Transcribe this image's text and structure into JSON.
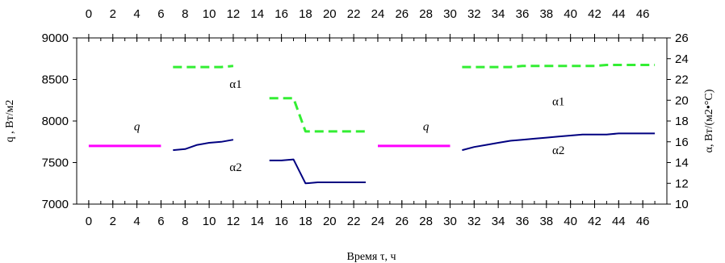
{
  "chart_data": {
    "type": "line",
    "xlabel": "Время τ, ч",
    "ylabel_left": "q , Вт/м2",
    "ylabel_right": "α, Вт/(м2•°С)",
    "x_range": [
      -1,
      48
    ],
    "x_ticks": [
      0,
      2,
      4,
      6,
      8,
      10,
      12,
      14,
      16,
      18,
      20,
      22,
      24,
      26,
      28,
      30,
      32,
      34,
      36,
      38,
      40,
      42,
      44,
      46
    ],
    "y_left_range": [
      7000,
      9000
    ],
    "y_left_ticks": [
      7000,
      7500,
      8000,
      8500,
      9000
    ],
    "y_right_range": [
      10,
      26
    ],
    "y_right_ticks": [
      10,
      12,
      14,
      16,
      18,
      20,
      22,
      24,
      26
    ],
    "grid": false,
    "legend": "none",
    "colors": {
      "q": "#ff00ff",
      "alpha1": "#33ee33",
      "alpha2": "#000080"
    },
    "series": [
      {
        "name": "q",
        "axis": "left",
        "style": "solid",
        "segments": [
          [
            [
              0,
              7700
            ],
            [
              6,
              7700
            ]
          ],
          [
            [
              24,
              7700
            ],
            [
              30,
              7700
            ]
          ]
        ]
      },
      {
        "name": "α1",
        "axis": "right",
        "style": "dashed",
        "segments": [
          [
            [
              7,
              23.2
            ],
            [
              8,
              23.2
            ],
            [
              9,
              23.2
            ],
            [
              10,
              23.2
            ],
            [
              11,
              23.2
            ],
            [
              12,
              23.3
            ]
          ],
          [
            [
              15,
              20.2
            ],
            [
              16,
              20.2
            ],
            [
              17,
              20.2
            ],
            [
              18,
              17.0
            ],
            [
              19,
              17.0
            ],
            [
              20,
              17.0
            ],
            [
              21,
              17.0
            ],
            [
              22,
              17.0
            ],
            [
              23,
              17.0
            ]
          ],
          [
            [
              31,
              23.2
            ],
            [
              32,
              23.2
            ],
            [
              33,
              23.2
            ],
            [
              34,
              23.2
            ],
            [
              35,
              23.2
            ],
            [
              36,
              23.3
            ],
            [
              37,
              23.3
            ],
            [
              38,
              23.3
            ],
            [
              39,
              23.3
            ],
            [
              40,
              23.3
            ],
            [
              41,
              23.3
            ],
            [
              42,
              23.3
            ],
            [
              43,
              23.4
            ],
            [
              44,
              23.4
            ],
            [
              45,
              23.4
            ],
            [
              46,
              23.4
            ],
            [
              47,
              23.4
            ]
          ]
        ]
      },
      {
        "name": "α2",
        "axis": "right",
        "style": "solid",
        "segments": [
          [
            [
              7,
              15.2
            ],
            [
              8,
              15.3
            ],
            [
              9,
              15.7
            ],
            [
              10,
              15.9
            ],
            [
              11,
              16.0
            ],
            [
              12,
              16.2
            ]
          ],
          [
            [
              15,
              14.2
            ],
            [
              16,
              14.2
            ],
            [
              17,
              14.3
            ],
            [
              18,
              12.0
            ],
            [
              19,
              12.1
            ],
            [
              20,
              12.1
            ],
            [
              21,
              12.1
            ],
            [
              22,
              12.1
            ],
            [
              23,
              12.1
            ]
          ],
          [
            [
              31,
              15.2
            ],
            [
              32,
              15.5
            ],
            [
              33,
              15.7
            ],
            [
              34,
              15.9
            ],
            [
              35,
              16.1
            ],
            [
              36,
              16.2
            ],
            [
              37,
              16.3
            ],
            [
              38,
              16.4
            ],
            [
              39,
              16.5
            ],
            [
              40,
              16.6
            ],
            [
              41,
              16.7
            ],
            [
              42,
              16.7
            ],
            [
              43,
              16.7
            ],
            [
              44,
              16.8
            ],
            [
              45,
              16.8
            ],
            [
              46,
              16.8
            ],
            [
              47,
              16.8
            ]
          ]
        ]
      }
    ],
    "annotations": [
      {
        "text": "q",
        "x": 4,
        "y_left": 7890,
        "italic": true
      },
      {
        "text": "q",
        "x": 28,
        "y_left": 7890,
        "italic": true
      },
      {
        "text": "α1",
        "x": 12.2,
        "y_right": 21.2
      },
      {
        "text": "α2",
        "x": 12.2,
        "y_right": 13.2
      },
      {
        "text": "α1",
        "x": 39,
        "y_right": 19.5
      },
      {
        "text": "α2",
        "x": 39,
        "y_right": 14.8
      }
    ]
  }
}
